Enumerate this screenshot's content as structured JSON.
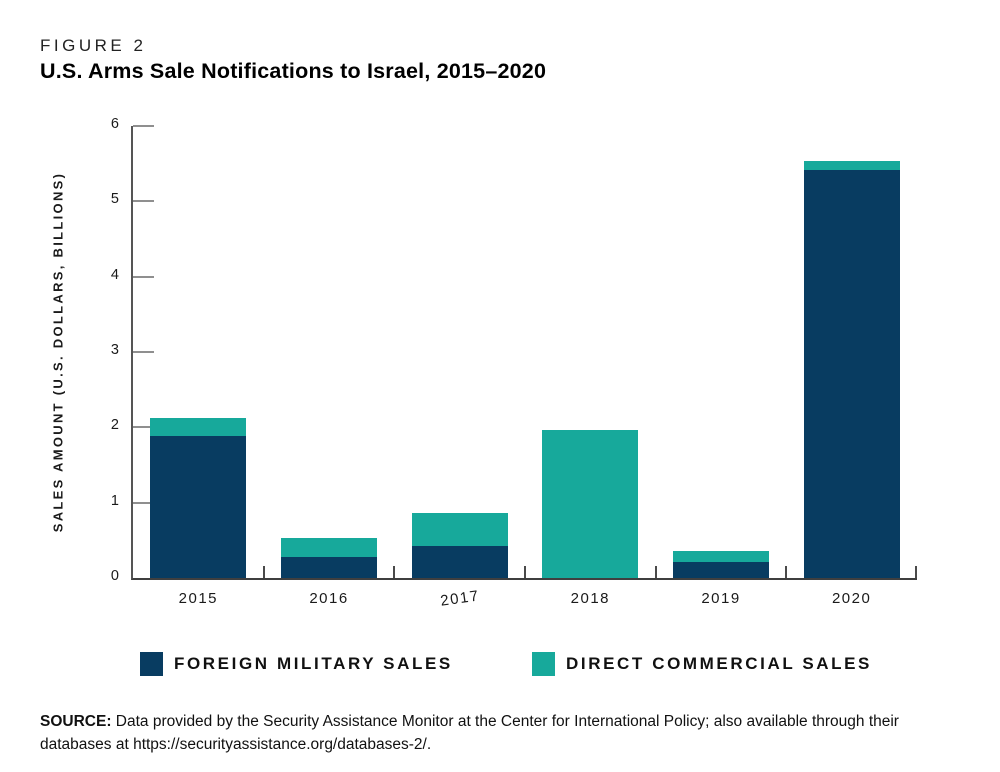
{
  "figure": {
    "kicker": "FIGURE 2",
    "title": "U.S. Arms Sale Notifications to Israel, 2015–2020"
  },
  "chart_data": {
    "type": "bar",
    "stacked": true,
    "title": "U.S. Arms Sale Notifications to Israel, 2015–2020",
    "categories": [
      "2015",
      "2016",
      "2017",
      "2018",
      "2019",
      "2020"
    ],
    "series": [
      {
        "name": "FOREIGN MILITARY SALES",
        "color": "#083C61",
        "values": [
          1.88,
          0.28,
          0.42,
          0,
          0.21,
          5.41
        ]
      },
      {
        "name": "DIRECT COMMERCIAL SALES",
        "color": "#17A99B",
        "values": [
          0.25,
          0.25,
          0.44,
          1.97,
          0.15,
          0.13
        ]
      }
    ],
    "totals": [
      2.13,
      0.53,
      0.86,
      1.97,
      0.36,
      5.54
    ],
    "xlabel": "",
    "ylabel": "SALES AMOUNT (U.S. DOLLARS, BILLIONS)",
    "ylim": [
      0,
      6
    ],
    "yticks": [
      0,
      1,
      2,
      3,
      4,
      5,
      6
    ],
    "grid": false,
    "legend_position": "bottom"
  },
  "source": {
    "label": "SOURCE:",
    "text": "Data provided by the Security Assistance Monitor at the Center for International Policy; also available through their databases at https://securityassistance.org/databases-2/."
  },
  "colors": {
    "foreign_military_sales": "#083C61",
    "direct_commercial_sales": "#17A99B",
    "axis": "#4a4a4a",
    "text": "#1a1a1a"
  }
}
